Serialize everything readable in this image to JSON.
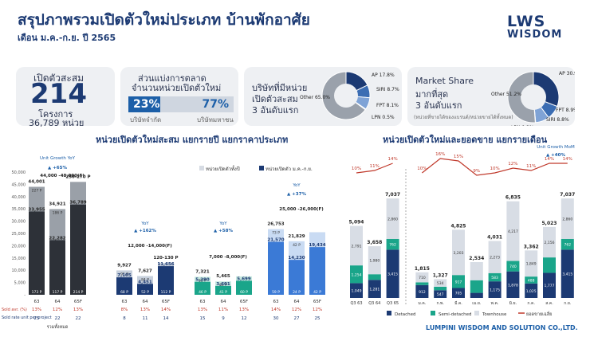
{
  "header": {
    "title": "สรุปภาพรวมเปิดตัวใหม่ประเภท บ้านพักอาศัย",
    "period": "เดือน ม.ค.-ก.ย. ปี 2565",
    "logo_top": "LWS",
    "logo_bottom": "WISDOM"
  },
  "card1": {
    "label": "เปิดตัวสะสม",
    "value": "214",
    "projects": "โครงการ",
    "units": "36,789 หน่วย"
  },
  "card2": {
    "line1": "ส่วนแบ่งการตลาด",
    "line2": "จำนวนหน่วยเปิดตัวใหม่",
    "listed_pct": "23%",
    "nonlisted_pct": "77%",
    "listed_label": "บริษัทจำกัด",
    "nonlisted_label": "บริษัทมหาชน"
  },
  "card3": {
    "lines": [
      "บริษัทที่มีหน่วย",
      "เปิดตัวสะสม",
      "3 อันดับแรก"
    ],
    "pie": [
      {
        "name": "AP",
        "pct": "17.8%",
        "value": 17.8
      },
      {
        "name": "SIRI",
        "pct": "8.7%",
        "value": 8.7
      },
      {
        "name": "FPT",
        "pct": "8.1%",
        "value": 8.1
      },
      {
        "name": "LPN",
        "pct": "0.5%",
        "value": 0.5
      },
      {
        "name": "Other",
        "pct": "65.0%",
        "value": 65.0
      }
    ]
  },
  "card4": {
    "lines": [
      "Market Share",
      "มากที่สุด",
      "3 อันดับแรก"
    ],
    "note": "(หน่วยที่ขายได้ของแบรนด์/หน่วยขายได้ทั้งหมด)",
    "pie": [
      {
        "name": "AP",
        "pct": "30.9%",
        "value": 30.9
      },
      {
        "name": "FPT",
        "pct": "8.9%",
        "value": 8.9
      },
      {
        "name": "SIRI",
        "pct": "8.8%",
        "value": 8.8
      },
      {
        "name": "LPN",
        "pct": "0.2%",
        "value": 0.2
      },
      {
        "name": "Other",
        "pct": "51.2%",
        "value": 51.2
      }
    ]
  },
  "left_section_title": "หน่วยเปิดตัวใหม่สะสม แยกรายปี แยกราคาประเภท",
  "right_section_title": "หน่วยเปิดตัวใหม่และยอดขาย แยกรายเดือน",
  "footer": "LUMPINI WISDOM AND SOLUTION CO.,LTD.",
  "chart_data": [
    {
      "type": "bar",
      "title": "หน่วยเปิดตัวใหม่สะสม แยกรายปี แยกราคาประเภท",
      "y_ticks": [
        "50,000",
        "45,000",
        "40,000",
        "35,000",
        "30,000",
        "25,000",
        "20,000",
        "15,000",
        "10,000",
        "5,000",
        "-"
      ],
      "ylim": [
        0,
        50000
      ],
      "legend": [
        "หน่วยเปิดตัวทั้งปี",
        "หน่วยเปิดตัว ม.ค.-ก.ย."
      ],
      "row_labels": [
        "Sold avr. (%)",
        "Sold rate unit per project"
      ],
      "groups": [
        {
          "label": "รวมทั้งหมด",
          "yoy": "Unit Growth YoY",
          "growth": "+65%",
          "forecast": "44,000 -48,000(F)",
          "bars": [
            {
              "x": "63",
              "full": 44001,
              "ytd": 33955,
              "full_label": "44,001",
              "ytd_label": "33,955",
              "projects_full": "227 P",
              "projects_ytd": "173 P",
              "sold": "13%",
              "rate": "25"
            },
            {
              "x": "64",
              "full": 34921,
              "ytd": 22282,
              "full_label": "34,921",
              "ytd_label": "22,282",
              "projects_full": "186 P",
              "projects_ytd": "117 P",
              "sold": "12%",
              "rate": "22"
            },
            {
              "x": "65F",
              "full": 46000,
              "ytd": 36789,
              "full_label": "250-270 P",
              "ytd_label": "36,789",
              "projects_full": "",
              "projects_ytd": "214 P",
              "sold": "13%",
              "rate": "22"
            }
          ]
        },
        {
          "label": "",
          "yoy": "YoY",
          "growth": "+162%",
          "forecast": "12,000 -14,000(F)",
          "bars": [
            {
              "x": "63",
              "full": 9927,
              "ytd": 7105,
              "full_label": "9,927",
              "ytd_label": "7,105",
              "projects_full": "91 P",
              "projects_ytd": "68 P",
              "sold": "8%",
              "rate": "8"
            },
            {
              "x": "64",
              "full": 7627,
              "ytd": 4451,
              "full_label": "7,627",
              "ytd_label": "4,451",
              "projects_full": "84 P",
              "projects_ytd": "52 P",
              "sold": "13%",
              "rate": "11"
            },
            {
              "x": "65F",
              "full": 13000,
              "ytd": 11656,
              "full_label": "120-130 P",
              "ytd_label": "11,656",
              "projects_full": "",
              "projects_ytd": "112 P",
              "sold": "14%",
              "rate": "14"
            }
          ]
        },
        {
          "label": "",
          "yoy": "YoY",
          "growth": "+58%",
          "forecast": "7,000 -8,000(F)",
          "bars": [
            {
              "x": "63",
              "full": 7321,
              "ytd": 5280,
              "full_label": "7,321",
              "ytd_label": "5,280",
              "projects_full": "63 P",
              "projects_ytd": "46 P",
              "sold": "13%",
              "rate": "15"
            },
            {
              "x": "64",
              "full": 5465,
              "ytd": 3601,
              "full_label": "5,465",
              "ytd_label": "3,601",
              "projects_full": "60 P",
              "projects_ytd": "41 P",
              "sold": "11%",
              "rate": "9"
            },
            {
              "x": "65F",
              "full": 7500,
              "ytd": 5699,
              "full_label": "",
              "ytd_label": "5,699",
              "projects_full": "",
              "projects_ytd": "60 P",
              "sold": "13%",
              "rate": "12"
            }
          ]
        },
        {
          "label": "",
          "yoy": "YoY",
          "growth": "+37%",
          "forecast": "25,000 -26,000(F)",
          "bars": [
            {
              "x": "63",
              "full": 26753,
              "ytd": 21570,
              "full_label": "26,753",
              "ytd_label": "21,570",
              "projects_full": "73 P",
              "projects_ytd": "59 P",
              "sold": "14%",
              "rate": "30"
            },
            {
              "x": "64",
              "full": 21829,
              "ytd": 14230,
              "full_label": "21,829",
              "ytd_label": "14,230",
              "projects_full": "42 P",
              "projects_ytd": "24 P",
              "sold": "12%",
              "rate": "27"
            },
            {
              "x": "65F",
              "full": 25500,
              "ytd": 19434,
              "full_label": "",
              "ytd_label": "19,434",
              "projects_full": "",
              "projects_ytd": "42 P",
              "sold": "12%",
              "rate": "25"
            }
          ]
        }
      ]
    },
    {
      "type": "bar",
      "title": "หน่วยเปิดตัวใหม่และยอดขาย แยกรายเดือน",
      "subtitle": "Unit Growth MoM",
      "mom_growth": "+40%",
      "legend": [
        "Detached",
        "Semi-detached",
        "Townhouse",
        "ยอดขายเฉลี่ย"
      ],
      "series_colors": {
        "Detached": "#1c3a73",
        "Semi-detached": "#1aa58a",
        "Townhouse": "#d8dde5",
        "Sold": "#c0392b"
      },
      "line": [
        {
          "label": "Q3 63",
          "value": 10,
          "text": "10%"
        },
        {
          "label": "Q3 64",
          "value": 11,
          "text": "11%"
        },
        {
          "label": "Q3 65",
          "value": 14,
          "text": "14%"
        },
        {
          "label": "ม.ค.",
          "value": 10,
          "text": "10%"
        },
        {
          "label": "ก.พ.",
          "value": 16,
          "text": "16%"
        },
        {
          "label": "มี.ค.",
          "value": 15,
          "text": "15%"
        },
        {
          "label": "เม.ย.",
          "value": 9,
          "text": "9%"
        },
        {
          "label": "พ.ค.",
          "value": 10,
          "text": "10%"
        },
        {
          "label": "มิ.ย.",
          "value": 12,
          "text": "12%"
        },
        {
          "label": "ก.ค.",
          "value": 11,
          "text": "11%"
        },
        {
          "label": "ส.ค.",
          "value": 14,
          "text": "14%"
        },
        {
          "label": "ก.ย.",
          "value": 14,
          "text": "14%"
        }
      ],
      "bars": [
        {
          "x": "Q3 63",
          "total": "5,094",
          "townhouse": 2791,
          "semi": 1254,
          "detached": 1049,
          "townhouse_l": "2,791",
          "semi_l": "1,254",
          "det_l": "1,049"
        },
        {
          "x": "Q3 64",
          "total": "3,658",
          "townhouse": 1980,
          "semi": 397,
          "detached": 1281,
          "townhouse_l": "1,980",
          "semi_l": "",
          "det_l": "1,281"
        },
        {
          "x": "Q3 65",
          "total": "7,037",
          "townhouse": 2860,
          "semi": 762,
          "detached": 3415,
          "townhouse_l": "2,860",
          "semi_l": "762",
          "det_l": "3,415"
        },
        {
          "x": "ม.ค.",
          "total": "1,815",
          "townhouse": 710,
          "semi": 193,
          "detached": 912,
          "townhouse_l": "710",
          "semi_l": "",
          "det_l": "912"
        },
        {
          "x": "ก.พ.",
          "total": "1,327",
          "townhouse": 534,
          "semi": 246,
          "detached": 547,
          "townhouse_l": "534",
          "semi_l": "",
          "det_l": "547"
        },
        {
          "x": "มี.ค.",
          "total": "4,825",
          "townhouse": 3203,
          "semi": 917,
          "detached": 705,
          "townhouse_l": "3,203",
          "semi_l": "917",
          "det_l": "705"
        },
        {
          "x": "เม.ย.",
          "total": "2,534",
          "townhouse": 1281,
          "semi": 891,
          "detached": 362,
          "townhouse_l": "",
          "semi_l": "",
          "det_l": ""
        },
        {
          "x": "พ.ค.",
          "total": "4,031",
          "townhouse": 2273,
          "semi": 583,
          "detached": 1175,
          "townhouse_l": "2,273",
          "semi_l": "583",
          "det_l": "1,175"
        },
        {
          "x": "มิ.ย.",
          "total": "6,835",
          "townhouse": 4217,
          "semi": 740,
          "detached": 1878,
          "townhouse_l": "4,217",
          "semi_l": "740",
          "det_l": "1,878"
        },
        {
          "x": "ก.ค.",
          "total": "3,362",
          "townhouse": 1849,
          "semi": 488,
          "detached": 1025,
          "townhouse_l": "1,849",
          "semi_l": "488",
          "det_l": "1,025"
        },
        {
          "x": "ส.ค.",
          "total": "5,023",
          "townhouse": 2156,
          "semi": 1090,
          "detached": 1777,
          "townhouse_l": "2,156",
          "semi_l": "",
          "det_l": "1,777"
        },
        {
          "x": "ก.ย.",
          "total": "7,037",
          "townhouse": 2860,
          "semi": 762,
          "detached": 3415,
          "townhouse_l": "2,860",
          "semi_l": "762",
          "det_l": "3,415"
        }
      ],
      "ylim": [
        0,
        8000
      ]
    }
  ]
}
